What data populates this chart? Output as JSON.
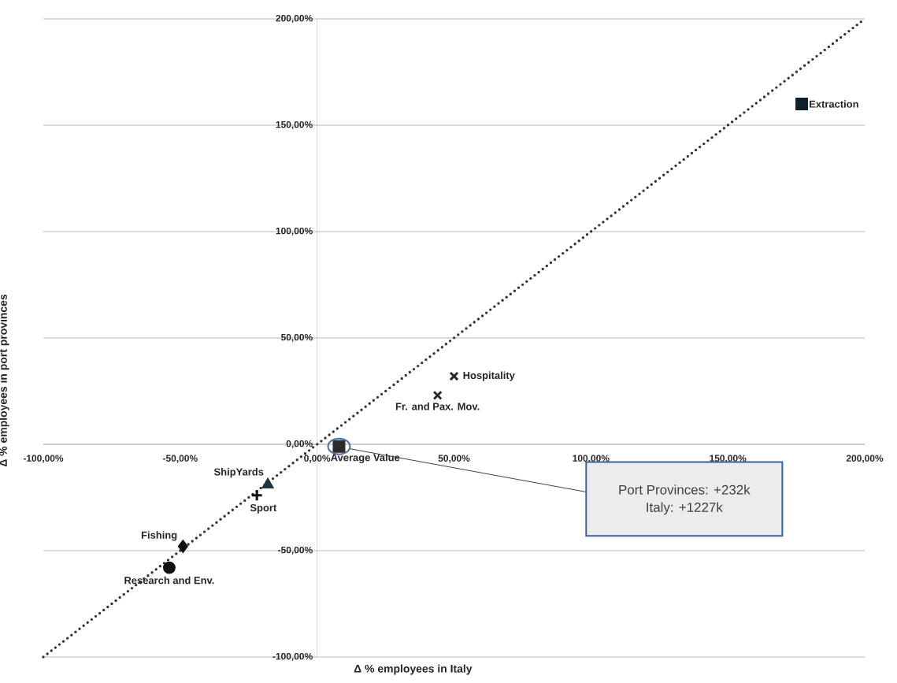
{
  "chart_data": {
    "type": "scatter",
    "xlabel": "Δ % employees in Italy",
    "ylabel": "Δ % employees in port provinces",
    "xlim": [
      -100,
      200
    ],
    "ylim": [
      -100,
      200
    ],
    "xticks": [
      {
        "value": -100,
        "label": "-100,00%"
      },
      {
        "value": -50,
        "label": "-50,00%"
      },
      {
        "value": 0,
        "label": "0,00%"
      },
      {
        "value": 50,
        "label": "50,00%"
      },
      {
        "value": 100,
        "label": "100,00%"
      },
      {
        "value": 150,
        "label": "150,00%"
      },
      {
        "value": 200,
        "label": "200,00%"
      }
    ],
    "yticks": [
      {
        "value": -100,
        "label": "-100,00%"
      },
      {
        "value": -50,
        "label": "-50,00%"
      },
      {
        "value": 0,
        "label": "0,00%"
      },
      {
        "value": 50,
        "label": "50,00%"
      },
      {
        "value": 100,
        "label": "100,00%"
      },
      {
        "value": 150,
        "label": "150,00%"
      },
      {
        "value": 200,
        "label": "200,00%"
      }
    ],
    "grid": "y",
    "series": [
      {
        "name": "Extraction",
        "color": "#10202a",
        "marker": "square",
        "x": [
          177
        ],
        "values": [
          160
        ]
      },
      {
        "name": "Hospitality",
        "color": "#2a2a2a",
        "marker": "cross",
        "x": [
          50
        ],
        "values": [
          32
        ]
      },
      {
        "name": "Fr. and Pax. Mov.",
        "color": "#2a2a2a",
        "marker": "cross",
        "x": [
          44
        ],
        "values": [
          23
        ]
      },
      {
        "name": "Average Value",
        "color": "#2a2a2a",
        "marker": "square",
        "x": [
          8
        ],
        "values": [
          -1
        ]
      },
      {
        "name": "ShipYards",
        "color": "#1f3540",
        "marker": "triangle",
        "x": [
          -18
        ],
        "values": [
          -19
        ]
      },
      {
        "name": "Sport",
        "color": "#111111",
        "marker": "plus",
        "x": [
          -22
        ],
        "values": [
          -24
        ]
      },
      {
        "name": "Fishing",
        "color": "#111111",
        "marker": "diamond",
        "x": [
          -49
        ],
        "values": [
          -48
        ]
      },
      {
        "name": "Research and Env.",
        "color": "#111111",
        "marker": "circle",
        "x": [
          -54
        ],
        "values": [
          -58
        ]
      },
      {
        "type": "line",
        "color": "#333333",
        "line_style": "dotted",
        "marker": "none",
        "x": [
          -100,
          200
        ],
        "values": [
          -100,
          200
        ]
      }
    ],
    "annotations": [
      "Port Provinces: +232k",
      "Italy: +1227k"
    ]
  }
}
